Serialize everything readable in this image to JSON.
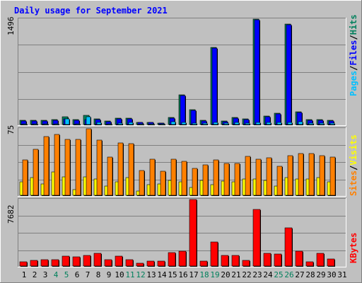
{
  "chart_data": [
    {
      "type": "bar",
      "title": "Daily usage for September 2021",
      "categories": [
        "1",
        "2",
        "3",
        "4",
        "5",
        "6",
        "7",
        "8",
        "9",
        "10",
        "11",
        "12",
        "13",
        "14",
        "15",
        "16",
        "17",
        "18",
        "19",
        "20",
        "21",
        "22",
        "23",
        "24",
        "25",
        "26",
        "27",
        "28",
        "29",
        "30",
        "31"
      ],
      "weekend_days": [
        "4",
        "5",
        "11",
        "12",
        "18",
        "19",
        "25",
        "26"
      ],
      "ymax_label": "1496",
      "ylim": [
        0,
        1496
      ],
      "series": [
        {
          "name": "Hits",
          "color": "#00805c",
          "values": [
            60,
            60,
            60,
            70,
            115,
            70,
            130,
            80,
            50,
            90,
            90,
            30,
            30,
            25,
            100,
            420,
            210,
            60,
            1090,
            50,
            100,
            80,
            1496,
            120,
            160,
            1430,
            180,
            70,
            70,
            60,
            0
          ]
        },
        {
          "name": "Files",
          "color": "#0000ff",
          "values": [
            55,
            55,
            55,
            65,
            85,
            65,
            75,
            75,
            45,
            80,
            85,
            30,
            30,
            22,
            95,
            410,
            200,
            55,
            1080,
            45,
            95,
            75,
            1490,
            110,
            150,
            1420,
            170,
            65,
            65,
            55,
            0
          ]
        },
        {
          "name": "Pages",
          "color": "#00c0ff",
          "values": [
            15,
            15,
            15,
            15,
            85,
            15,
            110,
            30,
            12,
            25,
            30,
            8,
            8,
            6,
            40,
            30,
            25,
            20,
            30,
            18,
            35,
            25,
            30,
            30,
            35,
            30,
            40,
            20,
            25,
            20,
            0
          ]
        }
      ],
      "legend": [
        "Pages",
        "/",
        "Files",
        "/",
        "Hits"
      ]
    },
    {
      "type": "bar",
      "ymax_label": "75",
      "ylim": [
        0,
        75
      ],
      "series": [
        {
          "name": "Visits",
          "color": "#ffff00",
          "values": [
            15,
            20,
            13,
            26,
            21,
            6,
            21,
            18,
            10,
            15,
            20,
            5,
            12,
            13,
            17,
            15,
            9,
            17,
            12,
            16,
            15,
            18,
            18,
            17,
            10,
            20,
            18,
            18,
            20,
            15,
            0
          ]
        },
        {
          "name": "Sites",
          "color": "#ff8000",
          "values": [
            40,
            52,
            66,
            69,
            63,
            63,
            75,
            62,
            43,
            59,
            58,
            28,
            41,
            27,
            41,
            38,
            30,
            34,
            40,
            36,
            36,
            44,
            41,
            42,
            33,
            45,
            47,
            47,
            45,
            43,
            0
          ]
        }
      ],
      "legend": [
        "Sites",
        "/",
        "Visits"
      ]
    },
    {
      "type": "bar",
      "ymax_label": "7682",
      "ylim": [
        0,
        7682
      ],
      "series": [
        {
          "name": "KBytes",
          "color": "#ff0000",
          "values": [
            500,
            650,
            700,
            750,
            1150,
            1100,
            1200,
            1450,
            700,
            1150,
            700,
            300,
            600,
            600,
            1550,
            1700,
            7682,
            550,
            2800,
            1200,
            1250,
            650,
            6500,
            1500,
            1400,
            4400,
            1700,
            450,
            1450,
            800,
            0
          ]
        }
      ],
      "legend": [
        "KBytes"
      ]
    }
  ]
}
